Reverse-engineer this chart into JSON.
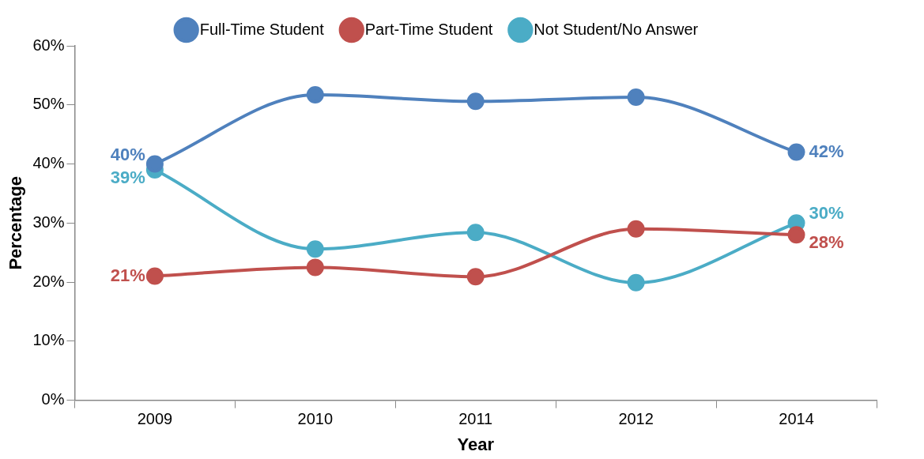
{
  "chart_data": {
    "type": "line",
    "xlabel": "Year",
    "ylabel": "Percentage",
    "categories": [
      "2009",
      "2010",
      "2011",
      "2012",
      "2014"
    ],
    "ylim": [
      0,
      60
    ],
    "yticks": [
      {
        "value": 0,
        "label": "0%"
      },
      {
        "value": 10,
        "label": "10%"
      },
      {
        "value": 20,
        "label": "20%"
      },
      {
        "value": 30,
        "label": "30%"
      },
      {
        "value": 40,
        "label": "40%"
      },
      {
        "value": 50,
        "label": "50%"
      },
      {
        "value": 60,
        "label": "60%"
      }
    ],
    "grid": false,
    "legend": "top",
    "marker": "circle",
    "line_style": "solid",
    "series": [
      {
        "name": "Full-Time Student",
        "color": "#4f81bd",
        "values": [
          40,
          51.7,
          50.6,
          51.3,
          42
        ],
        "value_labels": [
          "40%",
          null,
          null,
          null,
          "42%"
        ]
      },
      {
        "name": "Part-Time Student",
        "color": "#c0504d",
        "values": [
          21,
          22.5,
          20.9,
          29,
          28
        ],
        "value_labels": [
          "21%",
          null,
          null,
          null,
          "28%"
        ]
      },
      {
        "name": "Not Student/No Answer",
        "color": "#4bacc6",
        "values": [
          39,
          25.6,
          28.4,
          19.9,
          30
        ],
        "value_labels": [
          "39%",
          null,
          null,
          null,
          "30%"
        ]
      }
    ]
  }
}
